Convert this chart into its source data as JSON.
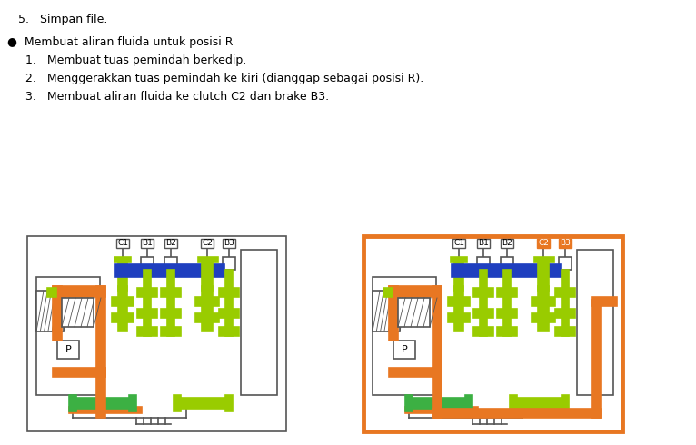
{
  "background_color": "#ffffff",
  "text_color": "#000000",
  "orange_color": "#E87722",
  "blue_color": "#1F3FBF",
  "green_color": "#3CB043",
  "lime_color": "#99CC00",
  "gray_color": "#888888",
  "line_color": "#555555",
  "text_lines": [
    "5.   Simpan file.",
    "     Membuat aliran fluida untuk posisi R",
    "     1.   Membuat tuas pemindah berkedip.",
    "     2.   Menggerakkan tuas pemindah ke kiri (dianggap sebagai posisi R).",
    "     3.   Membuat aliran fluida ke clutch C2 dan brake B3."
  ],
  "diagram1_labels": [
    "C1",
    "B1",
    "B2",
    "C2",
    "B3"
  ],
  "diagram2_labels": [
    "C1",
    "B1",
    "B2",
    "C2",
    "B3"
  ],
  "diagram2_highlighted": [
    "C2",
    "B3"
  ]
}
